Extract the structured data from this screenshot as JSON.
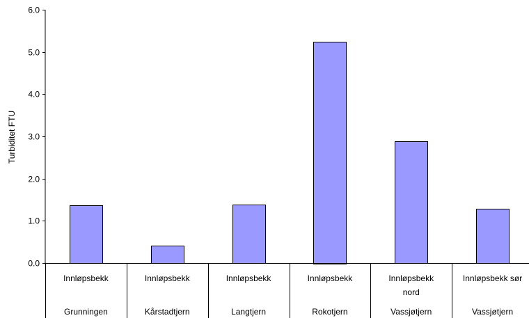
{
  "chart_data": {
    "type": "bar",
    "ylabel": "Turbiditet FTU",
    "ylim": [
      0,
      6
    ],
    "yticks": [
      "0.0",
      "1.0",
      "2.0",
      "3.0",
      "4.0",
      "5.0",
      "6.0"
    ],
    "grid": false,
    "legend": "none",
    "bar_color": "#9999ff",
    "categories": [
      {
        "line1": "Innløpsbekk",
        "line2": "",
        "group": "Grunningen"
      },
      {
        "line1": "Innløpsbekk",
        "line2": "",
        "group": "Kårstadtjern"
      },
      {
        "line1": "Innløpsbekk",
        "line2": "",
        "group": "Langtjern"
      },
      {
        "line1": "Innløpsbekk",
        "line2": "",
        "group": "Rokotjern"
      },
      {
        "line1": "Innløpsbekk",
        "line2": "nord",
        "group": "Vassjøtjern"
      },
      {
        "line1": "Innløpsbekk sør",
        "line2": "",
        "group": "Vassjøtjern"
      }
    ],
    "values": [
      1.37,
      0.42,
      1.39,
      5.25,
      2.89,
      1.28
    ]
  }
}
